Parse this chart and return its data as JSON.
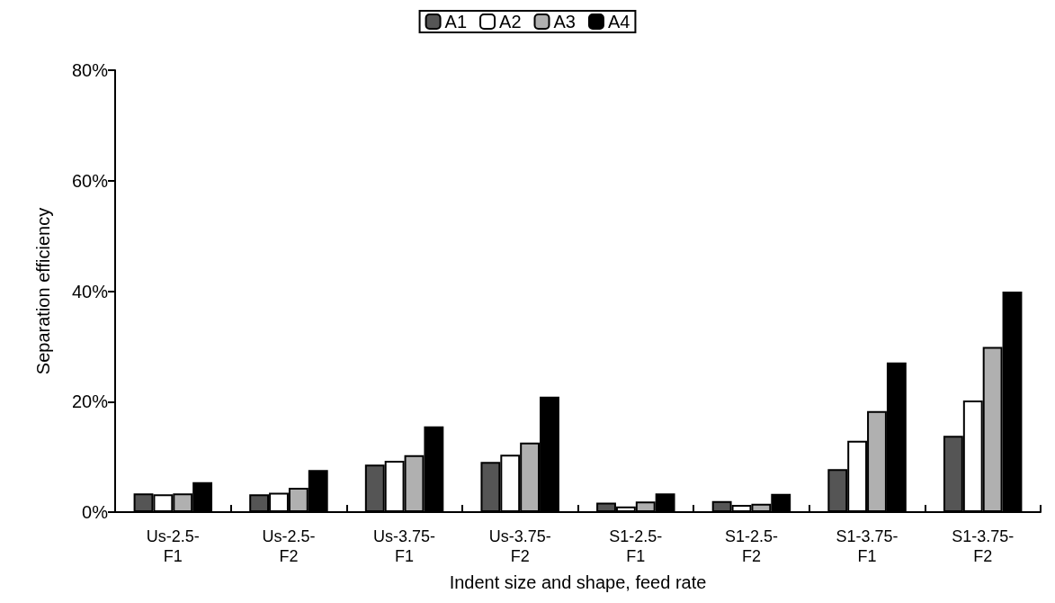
{
  "chart_data": {
    "type": "bar",
    "xlabel": "Indent size and shape, feed rate",
    "ylabel": "Separation efficiency",
    "categories": [
      "Us-2.5-F1",
      "Us-2.5-F2",
      "Us-3.75-F1",
      "Us-3.75-F2",
      "S1-2.5-F1",
      "S1-2.5-F2",
      "S1-3.75-F1",
      "S1-3.75-F2"
    ],
    "series": [
      {
        "name": "A1",
        "color": "#555555",
        "values": [
          3.4,
          3.2,
          8.6,
          9.1,
          1.7,
          2.0,
          7.8,
          13.8
        ]
      },
      {
        "name": "A2",
        "color": "#ffffff",
        "values": [
          3.2,
          3.5,
          9.3,
          10.4,
          1.0,
          1.3,
          12.9,
          20.2
        ]
      },
      {
        "name": "A3",
        "color": "#b0b0b0",
        "values": [
          3.4,
          4.4,
          10.3,
          12.6,
          1.9,
          1.5,
          18.3,
          29.9
        ]
      },
      {
        "name": "A4",
        "color": "#000000",
        "values": [
          5.4,
          7.6,
          15.5,
          20.9,
          3.4,
          3.3,
          27.1,
          39.9
        ]
      }
    ],
    "ylim": [
      0,
      80
    ],
    "yticks": [
      {
        "value": 0,
        "label": "0%"
      },
      {
        "value": 20,
        "label": "20%"
      },
      {
        "value": 40,
        "label": "40%"
      },
      {
        "value": 60,
        "label": "60%"
      },
      {
        "value": 80,
        "label": "80%"
      }
    ],
    "grid": false,
    "legend": "top"
  }
}
